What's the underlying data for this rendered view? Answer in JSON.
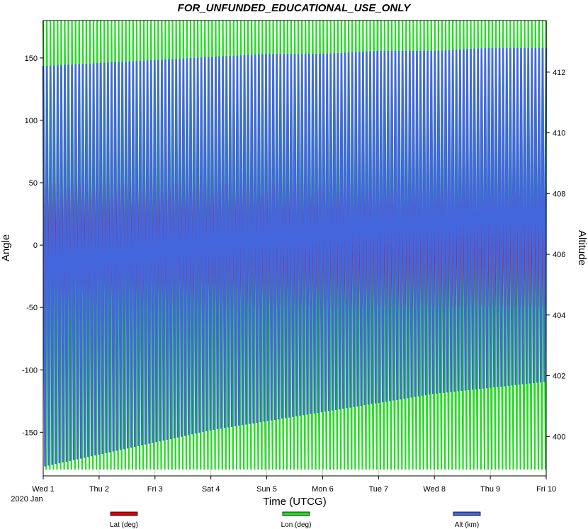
{
  "chart_data": {
    "type": "line",
    "title": "FOR_UNFUNDED_EDUCATIONAL_USE_ONLY",
    "xlabel": "Time (UTCG)",
    "x_sub_label": "2020 Jan",
    "ylabel_left": "Angle",
    "ylabel_right": "Altitude",
    "x_ticks": [
      "Wed 1",
      "Thu 2",
      "Fri 3",
      "Sat 4",
      "Sun 5",
      "Mon 6",
      "Tue 7",
      "Wed 8",
      "Thu 9",
      "Fri 10"
    ],
    "ylim_left": [
      -185,
      180
    ],
    "yticks_left": [
      -150,
      -100,
      -50,
      0,
      50,
      100,
      150
    ],
    "ylim_right": [
      398.7,
      413.7
    ],
    "yticks_right": [
      400,
      402,
      404,
      406,
      408,
      410,
      412
    ],
    "grid": "vertical",
    "legend_position": "bottom",
    "series": [
      {
        "name": "Lat (deg)",
        "color": "#e00000",
        "axis": "left",
        "range": [
          -51.6,
          51.6
        ]
      },
      {
        "name": "Lon (deg)",
        "color": "#22dd22",
        "axis": "left",
        "range": [
          -180,
          180
        ]
      },
      {
        "name": "Alt (km)",
        "color": "#4466dd",
        "axis": "right",
        "x": [
          "Wed 1",
          "Thu 2",
          "Fri 3",
          "Sat 4",
          "Sun 5",
          "Mon 6",
          "Tue 7",
          "Wed 8",
          "Thu 9",
          "Fri 10"
        ],
        "max": [
          412.2,
          412.3,
          412.4,
          412.5,
          412.6,
          412.6,
          412.7,
          412.7,
          412.8,
          412.8
        ],
        "min": [
          399.0,
          399.4,
          399.8,
          400.2,
          400.5,
          400.8,
          401.1,
          401.4,
          401.6,
          401.8
        ]
      }
    ]
  }
}
